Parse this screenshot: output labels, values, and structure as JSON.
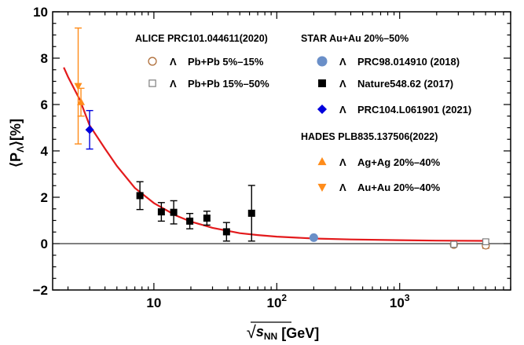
{
  "chart_data": {
    "type": "scatter",
    "x_scale": "log",
    "xlim": [
      1.5,
      8000
    ],
    "ylim": [
      -2,
      10
    ],
    "xlabel": "√s_NN [GeV]",
    "xlabel_parts": {
      "radical": "√",
      "symbol": "s",
      "sub": "NN",
      "unit": "[GeV]"
    },
    "ylabel": "⟨P_Λ⟩[%]",
    "ylabel_parts": {
      "open": "⟨P",
      "sub": "Λ",
      "close": "⟩[%]"
    },
    "y_ticks": [
      -2,
      0,
      2,
      4,
      6,
      8,
      10
    ],
    "y_tick_labels": [
      "−2",
      "0",
      "2",
      "4",
      "6",
      "8",
      "10"
    ],
    "x_ticks": [
      {
        "value": 10,
        "base": "10",
        "exp": ""
      },
      {
        "value": 100,
        "base": "10",
        "exp": "2"
      },
      {
        "value": 1000,
        "base": "10",
        "exp": "3"
      }
    ],
    "reference_line_y": 0,
    "legend_groups": [
      {
        "heading": "ALICE PRC101.044611(2020)"
      },
      {
        "heading": "STAR  Au+Au 20%–50%"
      },
      {
        "heading": "HADES PLB835.137506(2022)"
      }
    ],
    "series": [
      {
        "name": "Pb+Pb 5%–15%",
        "particle": "Λ",
        "marker": "open-circle",
        "color": "#b0703c",
        "points": [
          {
            "x": 2760,
            "y": -0.05,
            "err": 0.08
          },
          {
            "x": 5020,
            "y": -0.08,
            "err": 0.12
          }
        ]
      },
      {
        "name": "Pb+Pb 15%–50%",
        "particle": "Λ",
        "marker": "open-square",
        "color": "#7f7f7f",
        "points": [
          {
            "x": 2760,
            "y": -0.03,
            "err": 0.05
          },
          {
            "x": 5020,
            "y": 0.08,
            "err": 0.1
          }
        ]
      },
      {
        "name": "PRC98.014910 (2018)",
        "particle": "Λ",
        "marker": "filled-circle",
        "color": "#6a8fc8",
        "points": [
          {
            "x": 200,
            "y": 0.26,
            "err": 0.04
          }
        ]
      },
      {
        "name": "Nature548.62 (2017)",
        "particle": "Λ",
        "marker": "filled-square",
        "color": "#000000",
        "points": [
          {
            "x": 7.7,
            "y": 2.07,
            "err": 0.6
          },
          {
            "x": 11.5,
            "y": 1.37,
            "err": 0.4
          },
          {
            "x": 14.5,
            "y": 1.35,
            "err": 0.5
          },
          {
            "x": 19.6,
            "y": 0.97,
            "err": 0.33
          },
          {
            "x": 27,
            "y": 1.1,
            "err": 0.3
          },
          {
            "x": 39,
            "y": 0.51,
            "err": 0.4
          },
          {
            "x": 62.4,
            "y": 1.31,
            "err": 1.2
          }
        ]
      },
      {
        "name": "PRC104.L061901 (2021)",
        "particle": "Λ",
        "marker": "filled-diamond",
        "color": "#0000dd",
        "points": [
          {
            "x": 3.0,
            "y": 4.91,
            "err": 0.83
          }
        ]
      },
      {
        "name": "Ag+Ag 20%–40%",
        "particle": "Λ",
        "marker": "triangle-up",
        "color": "#ff8c1a",
        "points": [
          {
            "x": 2.55,
            "y": 6.1,
            "err": 0.6
          }
        ]
      },
      {
        "name": "Au+Au 20%–40%",
        "particle": "Λ",
        "marker": "triangle-down",
        "color": "#ff8c1a",
        "points": [
          {
            "x": 2.42,
            "y": 6.8,
            "err": 2.5
          }
        ]
      }
    ],
    "curve": {
      "color": "#e31a1c",
      "points": [
        [
          1.85,
          7.6
        ],
        [
          2.0,
          7.2
        ],
        [
          2.5,
          6.2
        ],
        [
          3.0,
          5.1
        ],
        [
          4.0,
          4.1
        ],
        [
          5.0,
          3.35
        ],
        [
          7.0,
          2.4
        ],
        [
          10,
          1.75
        ],
        [
          15,
          1.22
        ],
        [
          20,
          0.95
        ],
        [
          30,
          0.68
        ],
        [
          50,
          0.45
        ],
        [
          70,
          0.37
        ],
        [
          100,
          0.3
        ],
        [
          200,
          0.22
        ],
        [
          400,
          0.18
        ],
        [
          1000,
          0.15
        ],
        [
          2000,
          0.13
        ],
        [
          5000,
          0.12
        ]
      ]
    }
  }
}
